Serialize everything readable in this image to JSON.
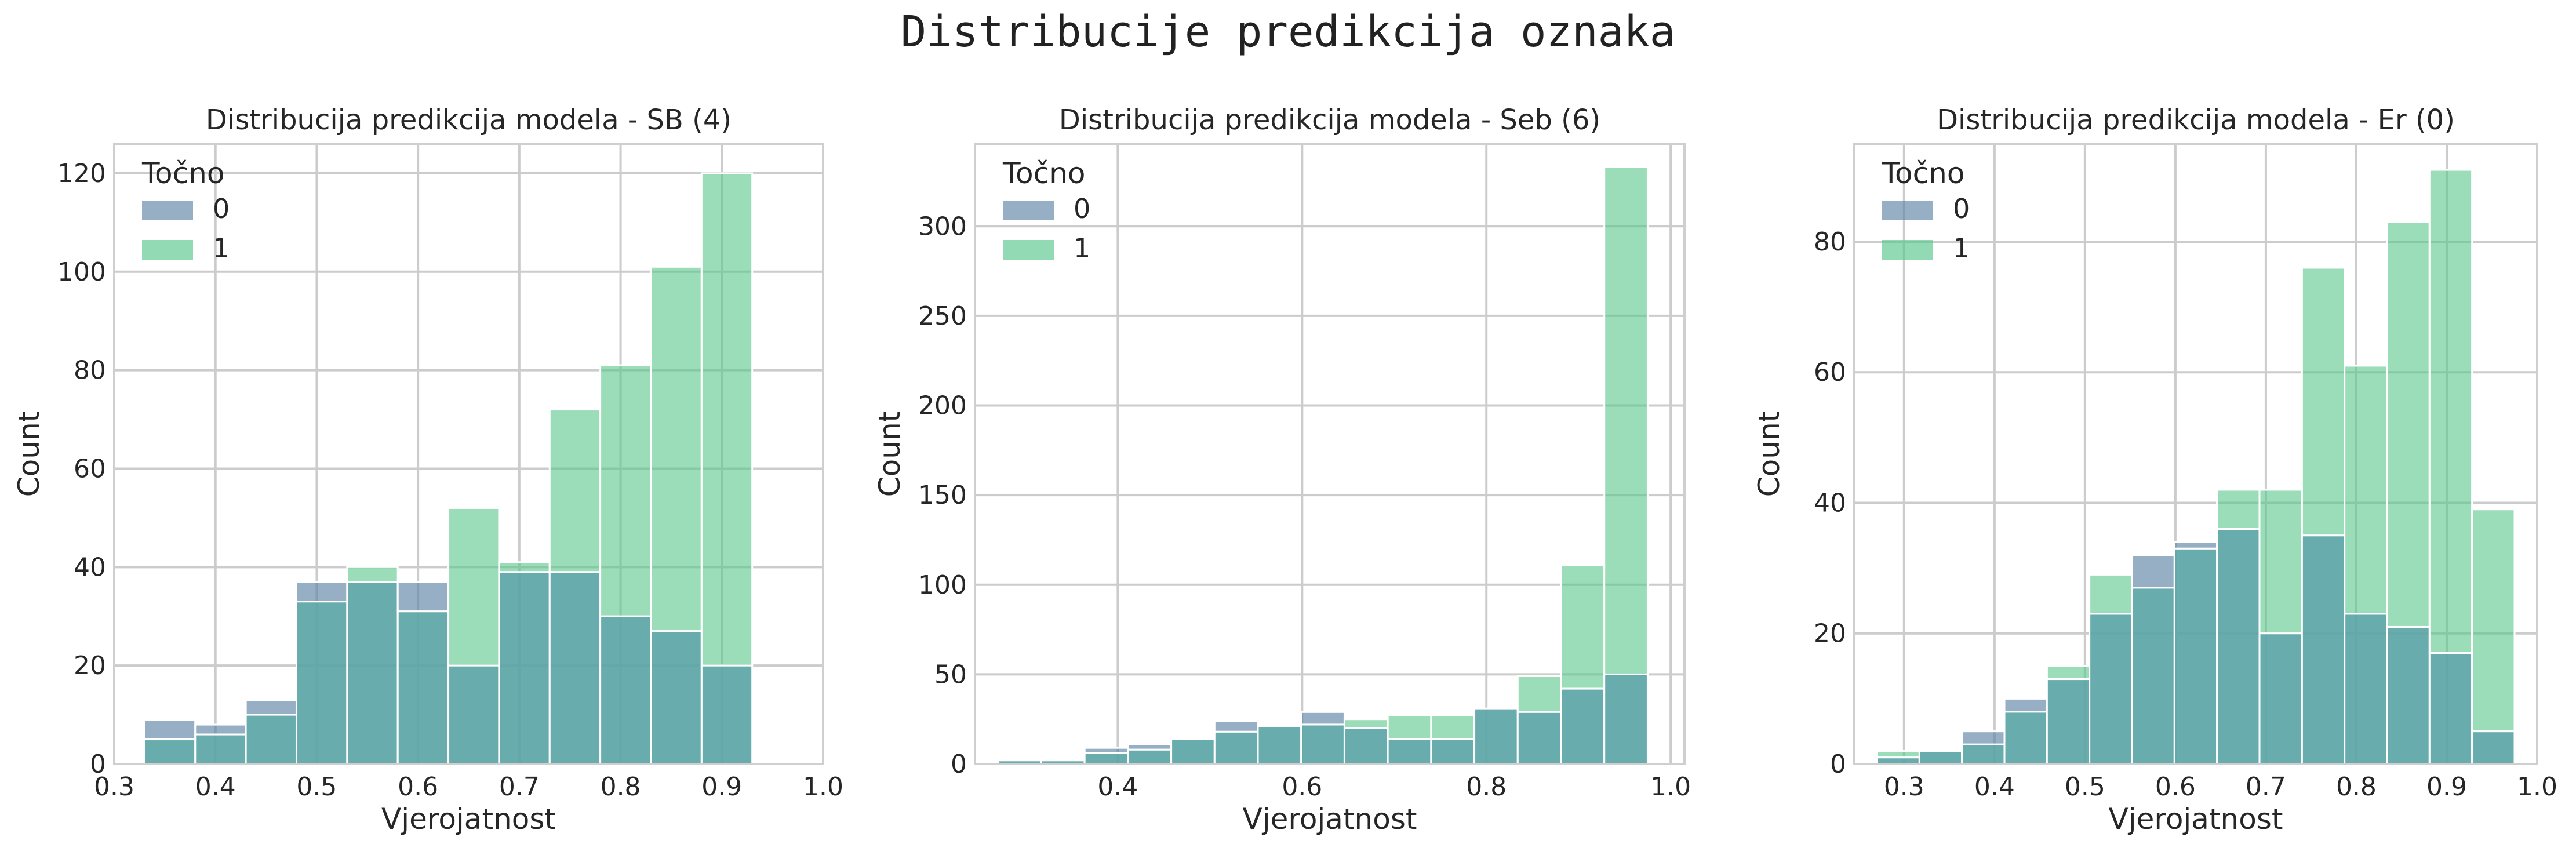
{
  "suptitle": "Distribucije predikcija oznaka",
  "colors": {
    "class_0": "#5f84a6",
    "class_1": "#58c68a",
    "overlap": "#5ba5a6",
    "grid": "#cccccc"
  },
  "chart_data": [
    {
      "type": "histogram",
      "title": "Distribucija predikcija modela - SB (4)",
      "xlabel": "Vjerojatnost",
      "ylabel": "Count",
      "xlim": [
        0.3,
        1.0
      ],
      "ylim": [
        0,
        126
      ],
      "xticks": [
        0.3,
        0.4,
        0.5,
        0.6,
        0.7,
        0.8,
        0.9,
        1.0
      ],
      "xtick_labels": [
        "0.3",
        "0.4",
        "0.5",
        "0.6",
        "0.7",
        "0.8",
        "0.9",
        "1.0"
      ],
      "yticks": [
        0,
        20,
        40,
        60,
        80,
        100,
        120
      ],
      "ytick_labels": [
        "0",
        "20",
        "40",
        "60",
        "80",
        "100",
        "120"
      ],
      "bin_edges": [
        0.33,
        0.38,
        0.43,
        0.48,
        0.53,
        0.58,
        0.63,
        0.68,
        0.73,
        0.78,
        0.83,
        0.88,
        0.93,
        0.98
      ],
      "legend": {
        "title": "Točno",
        "labels": [
          "0",
          "1"
        ],
        "position": "upper-left"
      },
      "series": [
        {
          "name": "0",
          "values": [
            9,
            8,
            13,
            37,
            37,
            37,
            20,
            39,
            39,
            30,
            27,
            20,
            0
          ]
        },
        {
          "name": "1",
          "values": [
            5,
            6,
            10,
            33,
            40,
            31,
            52,
            41,
            72,
            81,
            101,
            120,
            0
          ]
        }
      ]
    },
    {
      "type": "histogram",
      "title": "Distribucija predikcija modela - Seb (6)",
      "xlabel": "Vjerojatnost",
      "ylabel": "Count",
      "xlim": [
        0.245,
        1.015
      ],
      "ylim": [
        0,
        346
      ],
      "xticks": [
        0.4,
        0.6,
        0.8,
        1.0
      ],
      "xtick_labels": [
        "0.4",
        "0.6",
        "0.8",
        "1.0"
      ],
      "yticks": [
        0,
        50,
        100,
        150,
        200,
        250,
        300
      ],
      "ytick_labels": [
        "0",
        "50",
        "100",
        "150",
        "200",
        "250",
        "300"
      ],
      "bin_edges": [
        0.27,
        0.317,
        0.364,
        0.411,
        0.458,
        0.505,
        0.552,
        0.599,
        0.646,
        0.693,
        0.74,
        0.787,
        0.834,
        0.881,
        0.928,
        0.975
      ],
      "legend": {
        "title": "Točno",
        "labels": [
          "0",
          "1"
        ],
        "position": "upper-left"
      },
      "series": [
        {
          "name": "0",
          "values": [
            2,
            2,
            9,
            11,
            14,
            24,
            21,
            29,
            20,
            14,
            14,
            31,
            29,
            42,
            50
          ]
        },
        {
          "name": "1",
          "values": [
            2,
            2,
            6,
            8,
            14,
            18,
            21,
            22,
            25,
            27,
            27,
            31,
            49,
            111,
            333
          ]
        }
      ]
    },
    {
      "type": "histogram",
      "title": "Distribucija predikcija modela - Er (0)",
      "xlabel": "Vjerojatnost",
      "ylabel": "Count",
      "xlim": [
        0.245,
        1.0
      ],
      "ylim": [
        0,
        95
      ],
      "xticks": [
        0.3,
        0.4,
        0.5,
        0.6,
        0.7,
        0.8,
        0.9,
        1.0
      ],
      "xtick_labels": [
        "0.3",
        "0.4",
        "0.5",
        "0.6",
        "0.7",
        "0.8",
        "0.9",
        "1.0"
      ],
      "yticks": [
        0,
        20,
        40,
        60,
        80
      ],
      "ytick_labels": [
        "0",
        "20",
        "40",
        "60",
        "80"
      ],
      "bin_edges": [
        0.27,
        0.317,
        0.364,
        0.411,
        0.458,
        0.505,
        0.552,
        0.599,
        0.646,
        0.693,
        0.74,
        0.787,
        0.834,
        0.881,
        0.928,
        0.975
      ],
      "legend": {
        "title": "Točno",
        "labels": [
          "0",
          "1"
        ],
        "position": "upper-left"
      },
      "series": [
        {
          "name": "0",
          "values": [
            1,
            2,
            5,
            10,
            13,
            23,
            32,
            34,
            36,
            20,
            35,
            23,
            21,
            17,
            5
          ]
        },
        {
          "name": "1",
          "values": [
            2,
            2,
            3,
            8,
            15,
            29,
            27,
            33,
            42,
            42,
            76,
            61,
            83,
            91,
            39
          ]
        }
      ]
    }
  ]
}
